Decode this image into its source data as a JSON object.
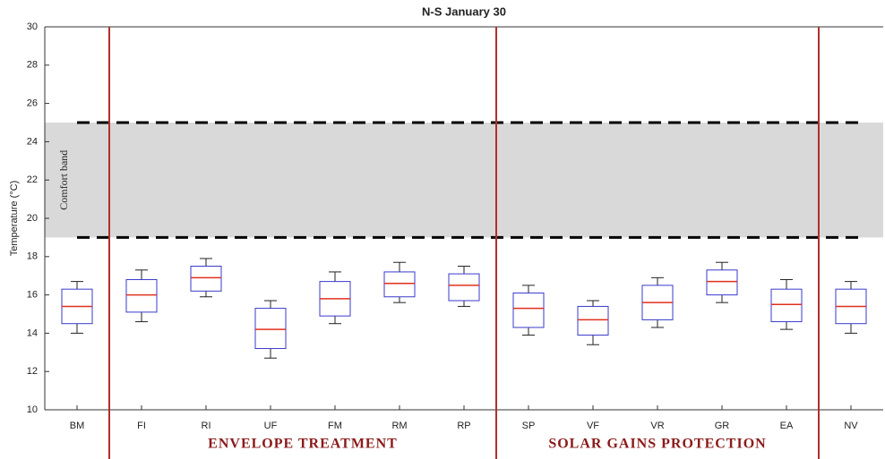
{
  "chart_data": {
    "type": "box",
    "title": "N-S January 30",
    "y_label": "Temperature (°C)",
    "categories": [
      "BM",
      "FI",
      "RI",
      "UF",
      "FM",
      "RM",
      "RP",
      "SP",
      "VF",
      "VR",
      "GR",
      "EA",
      "NV"
    ],
    "values": [
      [
        14.0,
        14.5,
        15.4,
        16.3,
        16.7
      ],
      [
        14.6,
        15.1,
        16.0,
        16.8,
        17.3
      ],
      [
        15.9,
        16.2,
        16.9,
        17.5,
        17.9
      ],
      [
        12.7,
        13.2,
        14.2,
        15.3,
        15.7
      ],
      [
        14.5,
        14.9,
        15.8,
        16.7,
        17.2
      ],
      [
        15.6,
        15.9,
        16.6,
        17.2,
        17.7
      ],
      [
        15.4,
        15.7,
        16.5,
        17.1,
        17.5
      ],
      [
        13.9,
        14.3,
        15.3,
        16.1,
        16.5
      ],
      [
        13.4,
        13.9,
        14.7,
        15.4,
        15.7
      ],
      [
        14.3,
        14.7,
        15.6,
        16.5,
        16.9
      ],
      [
        15.6,
        16.0,
        16.7,
        17.3,
        17.7
      ],
      [
        14.2,
        14.6,
        15.5,
        16.3,
        16.8
      ],
      [
        14.0,
        14.5,
        15.4,
        16.3,
        16.7
      ]
    ],
    "box_color": "#3a3acc",
    "median_color": "#e0301e",
    "whisker_color": "#222222",
    "ylim": [
      10,
      30
    ],
    "yticks": [
      10,
      12,
      14,
      16,
      18,
      20,
      22,
      24,
      26,
      28,
      30
    ],
    "comfort_band": {
      "label": "Comfort band",
      "range": [
        19,
        25
      ],
      "color": "#d9d9d9"
    },
    "groups": [
      {
        "label": "ENVELOPE TREATMENT",
        "from": 1,
        "to": 6
      },
      {
        "label": "SOLAR GAINS PROTECTION",
        "from": 7,
        "to": 11
      }
    ],
    "separator_color": "#b0302a"
  }
}
